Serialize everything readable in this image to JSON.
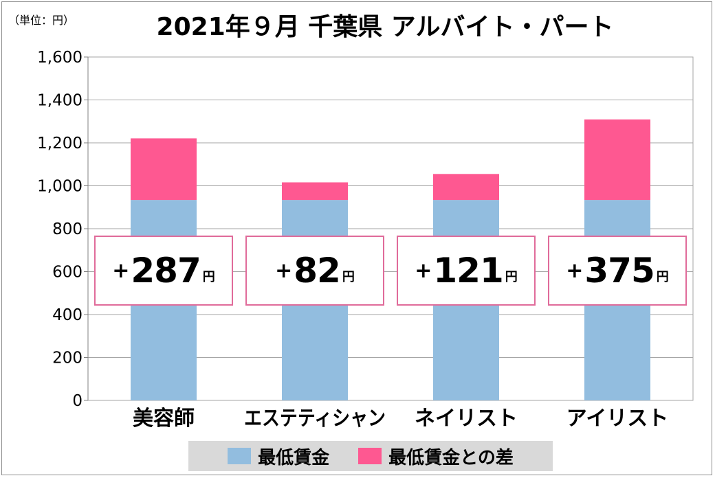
{
  "unit_label": "（単位：円）",
  "chart_data": {
    "type": "bar",
    "stacked": true,
    "title": "2021年９月 千葉県 アルバイト・パート",
    "categories": [
      "美容師",
      "エステティシャン",
      "ネイリスト",
      "アイリスト"
    ],
    "series": [
      {
        "name": "最低賃金",
        "color": "#92bddf",
        "values": [
          934,
          934,
          934,
          934
        ]
      },
      {
        "name": "最低賃金との差",
        "color": "#fe5891",
        "values": [
          287,
          82,
          121,
          375
        ]
      }
    ],
    "difference_labels": [
      {
        "sign": "+",
        "value": "287",
        "unit": "円"
      },
      {
        "sign": "+",
        "value": "82",
        "unit": "円"
      },
      {
        "sign": "+",
        "value": "121",
        "unit": "円"
      },
      {
        "sign": "+",
        "value": "375",
        "unit": "円"
      }
    ],
    "ylim": [
      0,
      1600
    ],
    "yticks": [
      0,
      200,
      400,
      600,
      800,
      1000,
      1200,
      1400,
      1600
    ],
    "ytick_labels": [
      "0",
      "200",
      "400",
      "600",
      "800",
      "1,000",
      "1,200",
      "1,400",
      "1,600"
    ],
    "grid": true,
    "legend_position": "bottom"
  }
}
